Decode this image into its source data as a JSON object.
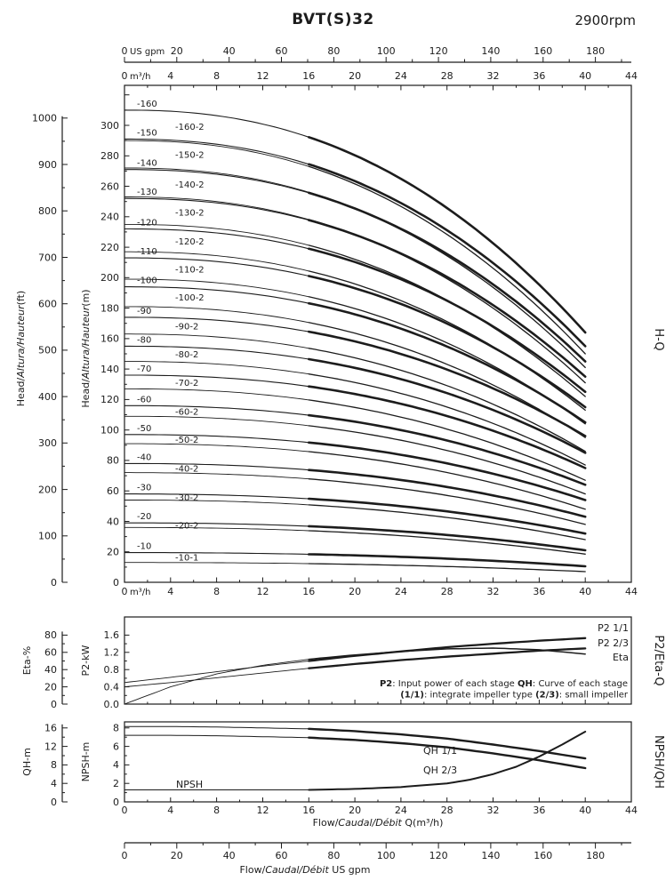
{
  "header": {
    "title": "BVT(S)32",
    "rpm": "2900rpm"
  },
  "chart_data": [
    {
      "id": "hq",
      "name": "H-Q",
      "type": "line",
      "x": {
        "unit_primary": "m³/h",
        "unit_secondary": "US gpm",
        "range_m3h": [
          0,
          44
        ],
        "ticks_m3h": [
          0,
          4,
          8,
          12,
          16,
          20,
          24,
          28,
          32,
          36,
          40,
          44
        ],
        "ticks_gpm": [
          0,
          20,
          40,
          60,
          80,
          100,
          120,
          140,
          160,
          180
        ]
      },
      "y": {
        "range_m": [
          0,
          326
        ],
        "ticks_m": [
          0,
          20,
          40,
          60,
          80,
          100,
          120,
          140,
          160,
          180,
          200,
          220,
          240,
          260,
          280,
          300
        ],
        "ticks_ft": [
          0,
          100,
          200,
          300,
          400,
          500,
          600,
          700,
          800,
          900,
          1000
        ],
        "label_m_parts": [
          {
            "t": "Head/"
          },
          {
            "t": "Altura/Hauteur",
            "i": true
          },
          {
            "t": "(m)"
          }
        ],
        "label_ft_parts": [
          {
            "t": "Head/"
          },
          {
            "t": "Altura/Hauteur",
            "i": true
          },
          {
            "t": "(ft)"
          }
        ]
      },
      "operating_range_m3h": [
        16,
        40
      ],
      "series": [
        {
          "label": "-160",
          "impeller": "full",
          "head_q0_m": 310,
          "head_q40_m": 164
        },
        {
          "label": "-160-2",
          "impeller": "small",
          "head_q0_m": 290,
          "head_q40_m": 150
        },
        {
          "label": "-150",
          "impeller": "full",
          "head_q0_m": 291,
          "head_q40_m": 155
        },
        {
          "label": "-150-2",
          "impeller": "small",
          "head_q0_m": 272,
          "head_q40_m": 141
        },
        {
          "label": "-140",
          "impeller": "full",
          "head_q0_m": 271,
          "head_q40_m": 145
        },
        {
          "label": "-140-2",
          "impeller": "small",
          "head_q0_m": 253,
          "head_q40_m": 131
        },
        {
          "label": "-130",
          "impeller": "full",
          "head_q0_m": 252,
          "head_q40_m": 135
        },
        {
          "label": "-130-2",
          "impeller": "small",
          "head_q0_m": 235,
          "head_q40_m": 122
        },
        {
          "label": "-120",
          "impeller": "full",
          "head_q0_m": 232,
          "head_q40_m": 125
        },
        {
          "label": "-120-2",
          "impeller": "small",
          "head_q0_m": 217,
          "head_q40_m": 113
        },
        {
          "label": "-110",
          "impeller": "full",
          "head_q0_m": 213,
          "head_q40_m": 115
        },
        {
          "label": "-110-2",
          "impeller": "small",
          "head_q0_m": 199,
          "head_q40_m": 104
        },
        {
          "label": "-100",
          "impeller": "full",
          "head_q0_m": 194,
          "head_q40_m": 105
        },
        {
          "label": "-100-2",
          "impeller": "small",
          "head_q0_m": 181,
          "head_q40_m": 95
        },
        {
          "label": "-90",
          "impeller": "full",
          "head_q0_m": 174,
          "head_q40_m": 96
        },
        {
          "label": "-90-2",
          "impeller": "small",
          "head_q0_m": 163,
          "head_q40_m": 86
        },
        {
          "label": "-80",
          "impeller": "full",
          "head_q0_m": 155,
          "head_q40_m": 85
        },
        {
          "label": "-80-2",
          "impeller": "small",
          "head_q0_m": 145,
          "head_q40_m": 77
        },
        {
          "label": "-70",
          "impeller": "full",
          "head_q0_m": 136,
          "head_q40_m": 75
        },
        {
          "label": "-70-2",
          "impeller": "small",
          "head_q0_m": 127,
          "head_q40_m": 67
        },
        {
          "label": "-60",
          "impeller": "full",
          "head_q0_m": 116,
          "head_q40_m": 64
        },
        {
          "label": "-60-2",
          "impeller": "small",
          "head_q0_m": 109,
          "head_q40_m": 58
        },
        {
          "label": "-50",
          "impeller": "full",
          "head_q0_m": 97,
          "head_q40_m": 54
        },
        {
          "label": "-50-2",
          "impeller": "small",
          "head_q0_m": 91,
          "head_q40_m": 48
        },
        {
          "label": "-40",
          "impeller": "full",
          "head_q0_m": 78,
          "head_q40_m": 43
        },
        {
          "label": "-40-2",
          "impeller": "small",
          "head_q0_m": 72,
          "head_q40_m": 38
        },
        {
          "label": "-30",
          "impeller": "full",
          "head_q0_m": 58,
          "head_q40_m": 32
        },
        {
          "label": "-30-2",
          "impeller": "small",
          "head_q0_m": 54,
          "head_q40_m": 28
        },
        {
          "label": "-20",
          "impeller": "full",
          "head_q0_m": 39,
          "head_q40_m": 21
        },
        {
          "label": "-20-2",
          "impeller": "small",
          "head_q0_m": 36,
          "head_q40_m": 18.5
        },
        {
          "label": "-10",
          "impeller": "full",
          "head_q0_m": 19.5,
          "head_q40_m": 10.5
        },
        {
          "label": "-10-1",
          "impeller": "small",
          "head_q0_m": 13,
          "head_q40_m": 7
        }
      ]
    },
    {
      "id": "p2eta",
      "name": "P2/Eta-Q",
      "type": "line",
      "axes": {
        "eta": {
          "label": "Eta-%",
          "ticks": [
            0,
            20,
            40,
            60,
            80
          ]
        },
        "p2": {
          "label": "P2-kW",
          "ticks": [
            0,
            0.4,
            0.8,
            1.2,
            1.6
          ]
        }
      },
      "series": [
        {
          "label": "P2 1/1",
          "unit": "kW",
          "yscale": "p2",
          "q_m3h": [
            0,
            4,
            8,
            12,
            16,
            20,
            24,
            28,
            32,
            36,
            40
          ],
          "values": [
            0.5,
            0.62,
            0.75,
            0.88,
            1.0,
            1.12,
            1.22,
            1.32,
            1.4,
            1.47,
            1.53
          ]
        },
        {
          "label": "P2 2/3",
          "unit": "kW",
          "yscale": "p2",
          "q_m3h": [
            0,
            4,
            8,
            12,
            16,
            20,
            24,
            28,
            32,
            36,
            40
          ],
          "values": [
            0.4,
            0.5,
            0.61,
            0.72,
            0.83,
            0.93,
            1.02,
            1.1,
            1.17,
            1.24,
            1.29
          ]
        },
        {
          "label": "Eta",
          "unit": "%",
          "yscale": "eta",
          "q_m3h": [
            0,
            2,
            4,
            8,
            12,
            16,
            20,
            24,
            28,
            32,
            36,
            40
          ],
          "values": [
            0,
            10,
            20,
            35,
            45,
            52,
            57,
            61,
            64,
            65,
            63,
            58
          ]
        }
      ],
      "note_lines": [
        [
          {
            "t": "P2",
            "b": true
          },
          {
            "t": ": Input power of each stage "
          },
          {
            "t": "QH",
            "b": true
          },
          {
            "t": ": Curve of each stage"
          }
        ],
        [
          {
            "t": "(1/1)",
            "b": true
          },
          {
            "t": ": integrate impeller type "
          },
          {
            "t": "(2/3)",
            "b": true
          },
          {
            "t": ": small impeller"
          }
        ]
      ]
    },
    {
      "id": "npshqh",
      "name": "NPSH/QH",
      "type": "line",
      "axes": {
        "qh": {
          "label": "QH-m",
          "ticks": [
            0,
            4,
            8,
            12,
            16
          ]
        },
        "npsh": {
          "label": "NPSH-m",
          "ticks": [
            0,
            2,
            4,
            6,
            8
          ]
        }
      },
      "series": [
        {
          "label": "QH 1/1",
          "unit": "m",
          "yscale": "qh",
          "q_m3h": [
            0,
            4,
            8,
            12,
            16,
            20,
            24,
            28,
            32,
            36,
            40
          ],
          "values": [
            16.3,
            16.3,
            16.2,
            16.0,
            15.8,
            15.3,
            14.6,
            13.7,
            12.4,
            11.0,
            9.4
          ]
        },
        {
          "label": "QH 2/3",
          "unit": "m",
          "yscale": "qh",
          "q_m3h": [
            0,
            4,
            8,
            12,
            16,
            20,
            24,
            28,
            32,
            36,
            40
          ],
          "values": [
            14.4,
            14.4,
            14.3,
            14.1,
            13.9,
            13.4,
            12.7,
            11.8,
            10.5,
            9.0,
            7.3
          ]
        },
        {
          "label": "NPSH",
          "unit": "m",
          "yscale": "npsh",
          "q_m3h": [
            0,
            8,
            16,
            20,
            24,
            28,
            30,
            32,
            34,
            36,
            38,
            40
          ],
          "values": [
            1.3,
            1.3,
            1.3,
            1.4,
            1.6,
            2.0,
            2.4,
            3.0,
            3.8,
            4.9,
            6.2,
            7.6
          ]
        }
      ],
      "x_ticks_m3h": [
        0,
        4,
        8,
        12,
        16,
        20,
        24,
        28,
        32,
        36,
        40,
        44
      ],
      "xlabel_parts": [
        {
          "t": "Flow/"
        },
        {
          "t": "Caudal/Débit",
          "i": true
        },
        {
          "t": " Q(m³/h)"
        }
      ]
    }
  ],
  "footer_axis": {
    "ticks_gpm": [
      0,
      20,
      40,
      60,
      80,
      100,
      120,
      140,
      160,
      180
    ],
    "label_parts": [
      {
        "t": "Flow/"
      },
      {
        "t": "Caudal/Débit",
        "i": true
      },
      {
        "t": "  US gpm"
      }
    ]
  }
}
